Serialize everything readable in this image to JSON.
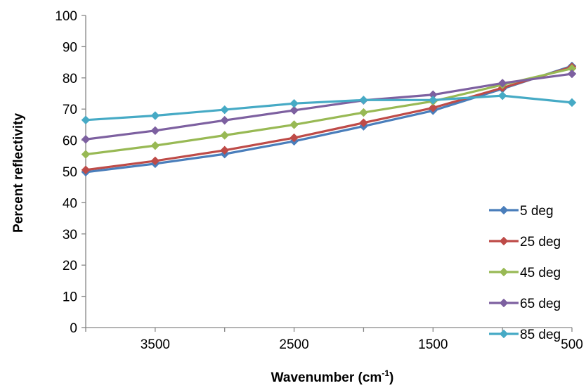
{
  "chart_data": {
    "type": "line",
    "title": "",
    "xlabel": "Wavenumber (cm",
    "xlabel_sup": "-1",
    "xlabel_close": ")",
    "ylabel": "Percent reflectivity",
    "xlim": [
      4000,
      500
    ],
    "ylim": [
      0,
      100
    ],
    "x_reversed": true,
    "x_ticks": [
      "3500",
      "2500",
      "1500",
      "500"
    ],
    "y_ticks": [
      "0",
      "10",
      "20",
      "30",
      "40",
      "50",
      "60",
      "70",
      "80",
      "90",
      "100"
    ],
    "x": [
      4000,
      3500,
      3000,
      2500,
      2000,
      1500,
      1000,
      500
    ],
    "grid": false,
    "legend_position": "right",
    "series": [
      {
        "name": "5 deg",
        "color": "#4a7ebb",
        "values": [
          49.8,
          52.5,
          55.6,
          59.7,
          64.5,
          69.5,
          76.5,
          83.8
        ]
      },
      {
        "name": "25 deg",
        "color": "#be4b48",
        "values": [
          50.5,
          53.4,
          56.8,
          60.8,
          65.6,
          70.4,
          76.8,
          83.5
        ]
      },
      {
        "name": "45 deg",
        "color": "#98b954",
        "values": [
          55.5,
          58.3,
          61.6,
          65.0,
          68.9,
          72.5,
          77.8,
          83.0
        ]
      },
      {
        "name": "65 deg",
        "color": "#7d60a0",
        "values": [
          60.3,
          63.1,
          66.4,
          69.6,
          72.8,
          74.6,
          78.3,
          81.3
        ]
      },
      {
        "name": "85 deg",
        "color": "#46aac5",
        "values": [
          66.5,
          67.9,
          69.8,
          71.8,
          72.9,
          72.9,
          74.3,
          72.1
        ]
      }
    ]
  }
}
